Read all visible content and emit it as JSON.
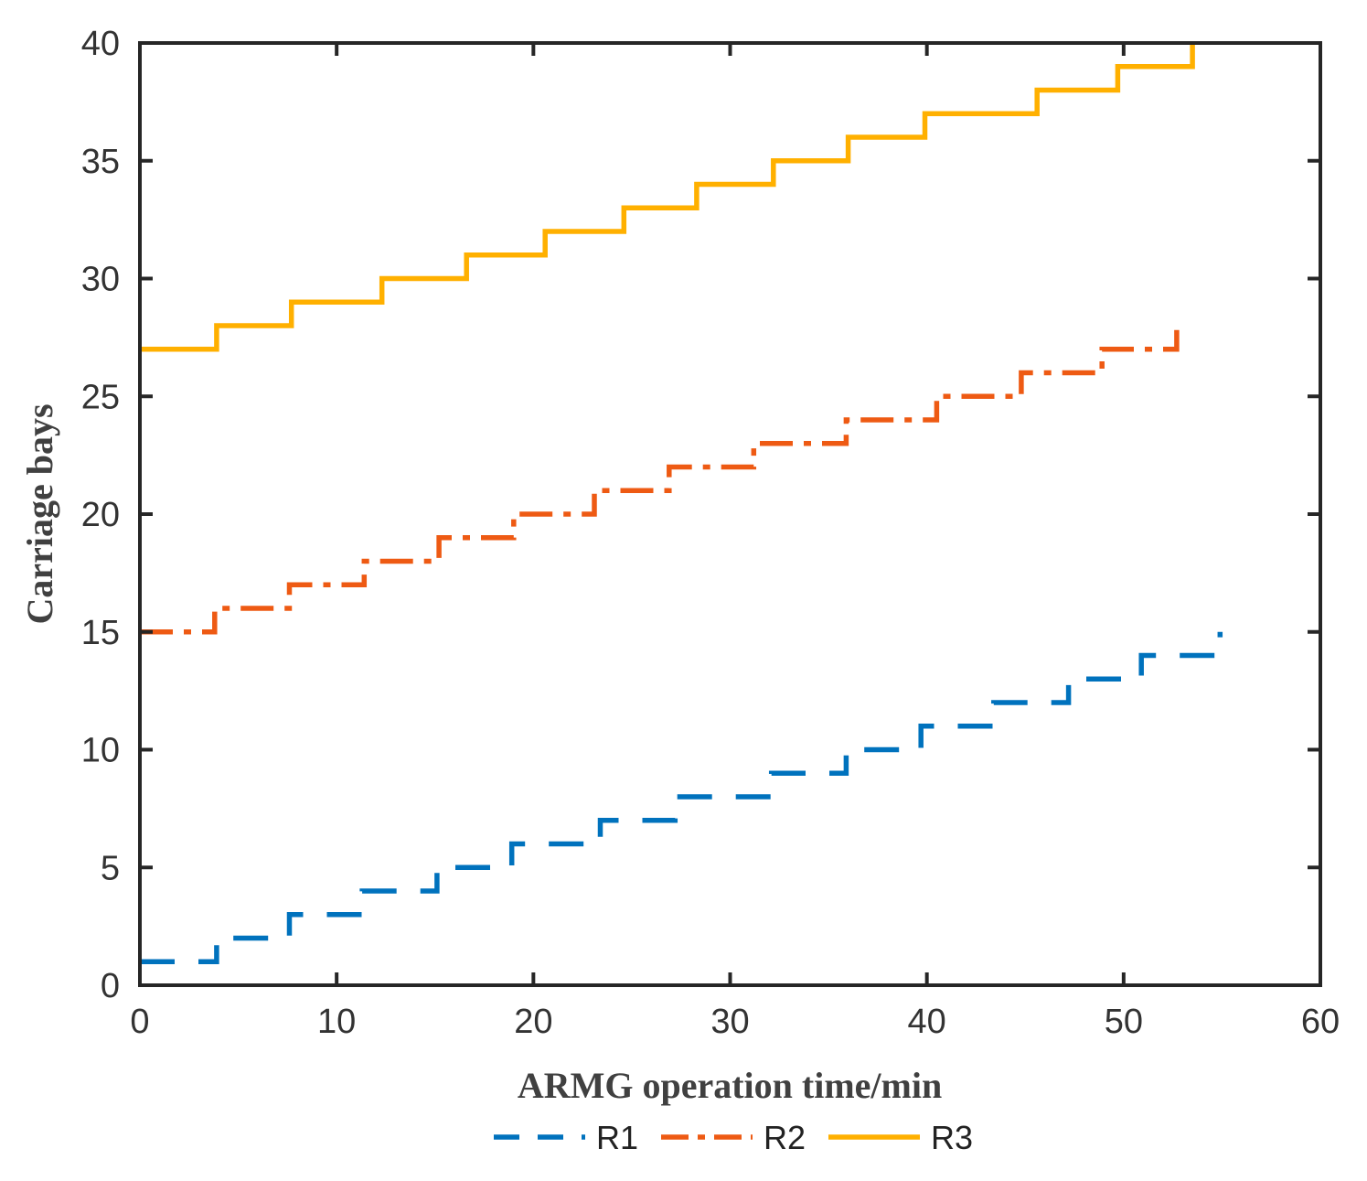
{
  "chart_data": {
    "type": "line",
    "step": true,
    "title": "",
    "xlabel": "ARMG operation time/min",
    "ylabel": "Carriage bays",
    "xlim": [
      0,
      60
    ],
    "ylim": [
      0,
      40
    ],
    "xticks": [
      0,
      10,
      20,
      30,
      40,
      50,
      60
    ],
    "yticks": [
      0,
      5,
      10,
      15,
      20,
      25,
      30,
      35,
      40
    ],
    "grid": false,
    "legend_position": "bottom",
    "series": [
      {
        "name": "R1",
        "color": "#0072BD",
        "line_style": "dashed",
        "x": [
          0,
          3.9,
          7.6,
          11.3,
          15.1,
          18.9,
          23.4,
          27.2,
          32.1,
          35.9,
          39.7,
          43.4,
          47.2,
          50.9,
          54.9
        ],
        "y": [
          1,
          2,
          3,
          4,
          5,
          6,
          7,
          8,
          9,
          10,
          11,
          12,
          13,
          14,
          15
        ]
      },
      {
        "name": "R2",
        "color": "#EE5A13",
        "line_style": "dashdot",
        "x": [
          0,
          3.8,
          7.6,
          11.4,
          15.2,
          19.0,
          23.1,
          26.9,
          31.2,
          35.9,
          40.5,
          44.8,
          48.9,
          52.7
        ],
        "y": [
          15,
          16,
          17,
          18,
          19,
          20,
          21,
          22,
          23,
          24,
          25,
          26,
          27,
          28
        ]
      },
      {
        "name": "R3",
        "color": "#FFB000",
        "line_style": "solid",
        "x": [
          0,
          3.9,
          7.7,
          12.3,
          16.6,
          20.6,
          24.6,
          28.3,
          32.2,
          36.0,
          39.9,
          45.6,
          49.7,
          53.5
        ],
        "y": [
          27,
          28,
          29,
          30,
          31,
          32,
          33,
          34,
          35,
          36,
          37,
          38,
          39,
          40
        ]
      }
    ]
  }
}
